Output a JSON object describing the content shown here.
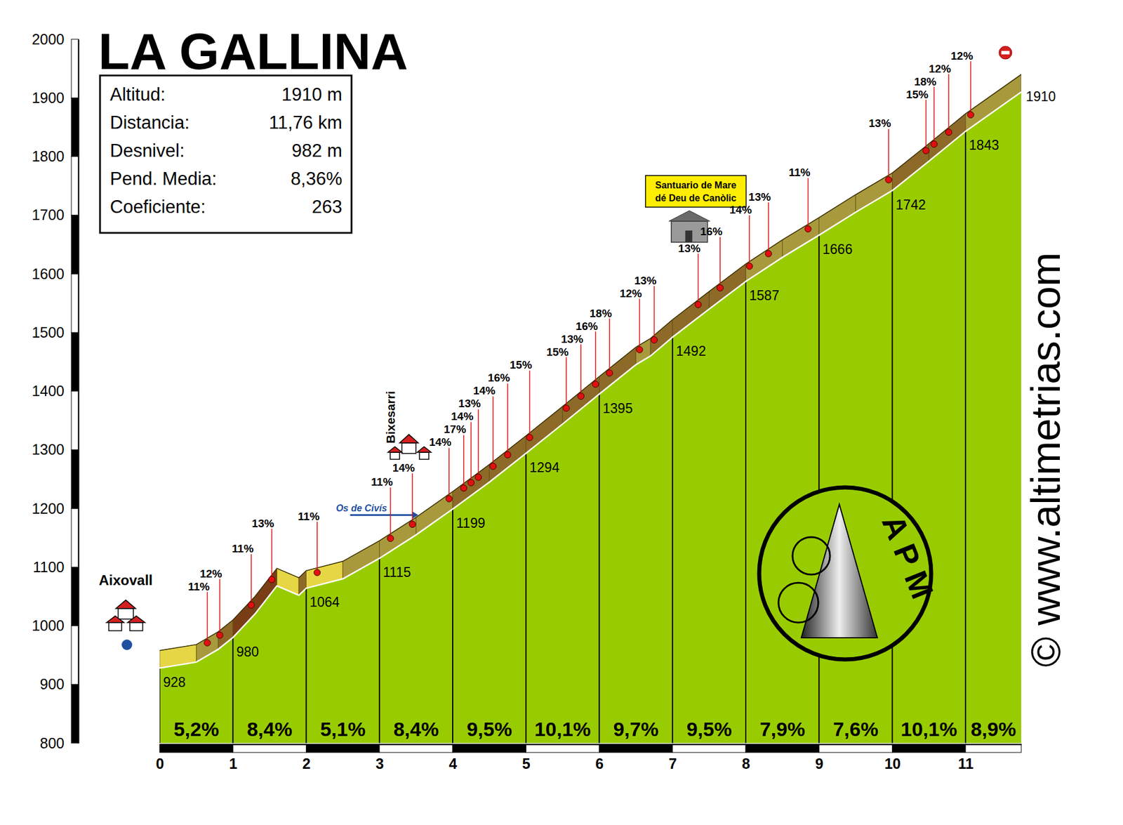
{
  "chart_data": {
    "type": "area",
    "title": "LA GALLINA",
    "info": [
      {
        "label": "Altitud:",
        "value": "1910 m"
      },
      {
        "label": "Distancia:",
        "value": "11,76 km"
      },
      {
        "label": "Desnivel:",
        "value": "982 m"
      },
      {
        "label": "Pend. Media:",
        "value": "8,36%"
      },
      {
        "label": "Coeficiente:",
        "value": "263"
      }
    ],
    "x": [
      0,
      0.5,
      0.8,
      1,
      1.3,
      1.6,
      1.9,
      2,
      2.5,
      3,
      3.5,
      4,
      4.5,
      5,
      5.5,
      6,
      6.5,
      6.7,
      7,
      7.5,
      8,
      8.5,
      9,
      9.5,
      10,
      10.5,
      11,
      11.76
    ],
    "series": [
      {
        "color": "#99cc00",
        "values": [
          928,
          938,
          960,
          980,
          1020,
          1068,
          1052,
          1064,
          1080,
          1115,
          1155,
          1199,
          1245,
          1294,
          1344,
          1395,
          1445,
          1460,
          1492,
          1540,
          1587,
          1628,
          1666,
          1705,
          1742,
          1792,
          1843,
          1910
        ]
      }
    ],
    "xlim": [
      0,
      11.76
    ],
    "xticks": [
      0,
      1,
      2,
      3,
      4,
      5,
      6,
      7,
      8,
      9,
      10,
      11
    ],
    "ylim": [
      800,
      2000
    ],
    "yticks": [
      800,
      900,
      1000,
      1100,
      1200,
      1300,
      1400,
      1500,
      1600,
      1700,
      1800,
      1900,
      2000
    ],
    "grid": true,
    "altitude_labels": {
      "x": [
        0,
        1,
        2,
        3,
        4,
        5,
        6,
        7,
        8,
        9,
        10,
        11,
        11.76
      ],
      "values": [
        928,
        980,
        1064,
        1115,
        1199,
        1294,
        1395,
        1492,
        1587,
        1666,
        1742,
        1843,
        1910
      ]
    },
    "segments": {
      "bins": [
        0,
        1,
        2,
        3,
        4,
        5,
        6,
        7,
        8,
        9,
        10,
        11,
        11.76
      ],
      "values": [
        5.2,
        8.4,
        5.1,
        8.4,
        9.5,
        10.1,
        9.7,
        9.5,
        7.9,
        7.6,
        10.1,
        8.9
      ],
      "value_labels": [
        "5,2%",
        "8,4%",
        "5,1%",
        "8,4%",
        "9,5%",
        "10,1%",
        "9,7%",
        "9,5%",
        "7,9%",
        "7,6%",
        "10,1%",
        "8,9%"
      ]
    },
    "markers": {
      "x": [
        0.65,
        0.82,
        1.25,
        1.53,
        2.15,
        3.15,
        3.45,
        3.95,
        4.15,
        4.25,
        4.35,
        4.55,
        4.75,
        5.05,
        5.55,
        5.75,
        5.95,
        6.14,
        6.55,
        6.75,
        7.35,
        7.65,
        8.05,
        8.31,
        8.85,
        9.95,
        10.46,
        10.57,
        10.77,
        11.07
      ],
      "values": [
        11,
        12,
        11,
        13,
        11,
        11,
        14,
        14,
        17,
        14,
        13,
        14,
        16,
        15,
        15,
        13,
        16,
        18,
        12,
        13,
        13,
        16,
        14,
        13,
        11,
        13,
        15,
        18,
        12,
        12
      ],
      "value_labels": [
        "11%",
        "12%",
        "11%",
        "13%",
        "11%",
        "11%",
        "14%",
        "14%",
        "17%",
        "14%",
        "13%",
        "14%",
        "16%",
        "15%",
        "15%",
        "13%",
        "16%",
        "18%",
        "12%",
        "13%",
        "13%",
        "16%",
        "14%",
        "13%",
        "11%",
        "13%",
        "15%",
        "18%",
        "12%",
        "12%"
      ]
    },
    "annotations": [
      {
        "lines": [
          "Aixovall"
        ],
        "x": 0
      },
      {
        "lines": [
          "Bixesarri"
        ],
        "x": 3.45
      },
      {
        "lines": [
          "Os de Civís"
        ],
        "x": 3.15
      },
      {
        "lines": [
          "Santuario de Mare",
          "dé Deu de Canòlic"
        ],
        "x": 7.35
      }
    ],
    "credits": {
      "site": "© www.altimetrias.com",
      "logo": "APM"
    }
  }
}
